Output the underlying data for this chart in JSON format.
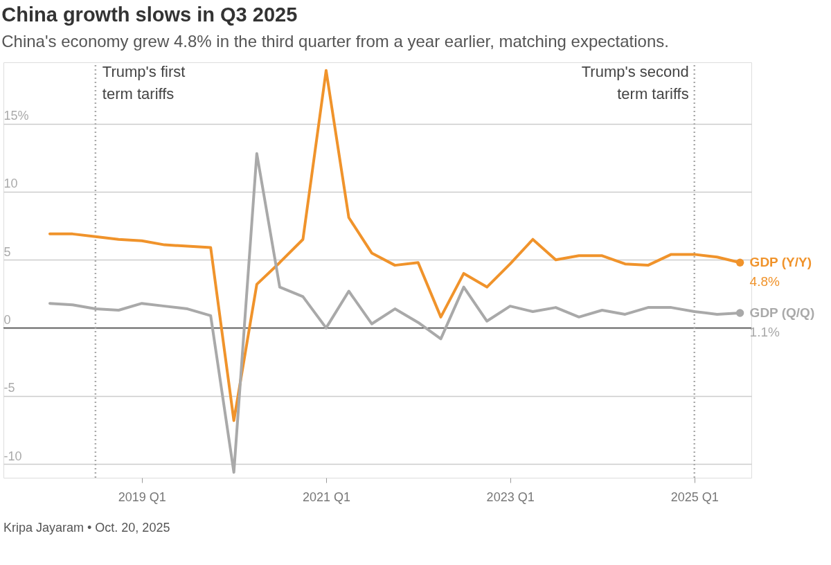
{
  "chart_data": {
    "type": "line",
    "title": "China growth slows in Q3 2025",
    "subtitle": "China's economy grew 4.8% in the third quarter from a year earlier, matching expectations.",
    "x": [
      "2018-01",
      "2018-04",
      "2018-07",
      "2018-10",
      "2019-01",
      "2019-04",
      "2019-07",
      "2019-10",
      "2020-01",
      "2020-04",
      "2020-07",
      "2020-10",
      "2021-01",
      "2021-04",
      "2021-07",
      "2021-10",
      "2022-01",
      "2022-04",
      "2022-07",
      "2022-10",
      "2023-01",
      "2023-04",
      "2023-07",
      "2023-10",
      "2024-01",
      "2024-04",
      "2024-07",
      "2024-10",
      "2025-01",
      "2025-04",
      "2025-07"
    ],
    "series": [
      {
        "name": "GDP (Y/Y)",
        "color": "#f0932b",
        "values": [
          6.9,
          6.9,
          6.7,
          6.5,
          6.4,
          6.1,
          6.0,
          5.9,
          -6.8,
          3.2,
          4.8,
          6.5,
          18.9,
          8.1,
          5.5,
          4.6,
          4.8,
          0.8,
          4.0,
          3.0,
          4.7,
          6.5,
          5.0,
          5.3,
          5.3,
          4.7,
          4.6,
          5.4,
          5.4,
          5.2,
          4.8
        ],
        "value_labels": [
          null,
          null,
          null,
          null,
          null,
          null,
          null,
          null,
          null,
          null,
          null,
          null,
          null,
          null,
          null,
          null,
          null,
          null,
          null,
          null,
          null,
          null,
          null,
          null,
          null,
          null,
          null,
          null,
          null,
          null,
          "4.8%"
        ]
      },
      {
        "name": "GDP (Q/Q)",
        "color": "#a9a9a9",
        "values": [
          1.8,
          1.7,
          1.4,
          1.3,
          1.8,
          1.6,
          1.4,
          0.9,
          -10.6,
          12.8,
          3.0,
          2.3,
          0.0,
          2.7,
          0.3,
          1.4,
          0.4,
          -0.8,
          3.0,
          0.5,
          1.6,
          1.2,
          1.5,
          0.8,
          1.3,
          1.0,
          1.5,
          1.5,
          1.2,
          1.0,
          1.1
        ],
        "value_labels": [
          null,
          null,
          null,
          null,
          null,
          null,
          null,
          null,
          null,
          null,
          null,
          null,
          null,
          null,
          null,
          null,
          null,
          null,
          null,
          null,
          null,
          null,
          null,
          null,
          null,
          null,
          null,
          null,
          null,
          null,
          "1.1%"
        ]
      }
    ],
    "xlim": [
      "2017-07",
      "2025-08-15"
    ],
    "xticks": [
      {
        "value": "2019-01",
        "label": "2019 Q1"
      },
      {
        "value": "2021-01",
        "label": "2021 Q1"
      },
      {
        "value": "2023-01",
        "label": "2023 Q1"
      },
      {
        "value": "2025-01",
        "label": "2025 Q1"
      }
    ],
    "ylim": [
      -11,
      19.5
    ],
    "yticks": [
      -10,
      -5,
      0,
      5,
      10,
      {
        "value": 15,
        "label": "15%"
      }
    ],
    "grid": "y",
    "ref_lines": [
      {
        "axis": "y",
        "value": 0,
        "color": "#333333",
        "line_style": "solid"
      },
      {
        "axis": "x",
        "value": "2018-07",
        "label": "Trump's first\nterm tariffs",
        "color": "#aaaaaa",
        "line_style": "dotted"
      },
      {
        "axis": "x",
        "value": "2025-01",
        "label": "Trump's second\nterm tariffs",
        "color": "#aaaaaa",
        "line_style": "dotted"
      }
    ],
    "annotations": [
      "Kripa Jayaram • Oct. 20, 2025"
    ]
  }
}
